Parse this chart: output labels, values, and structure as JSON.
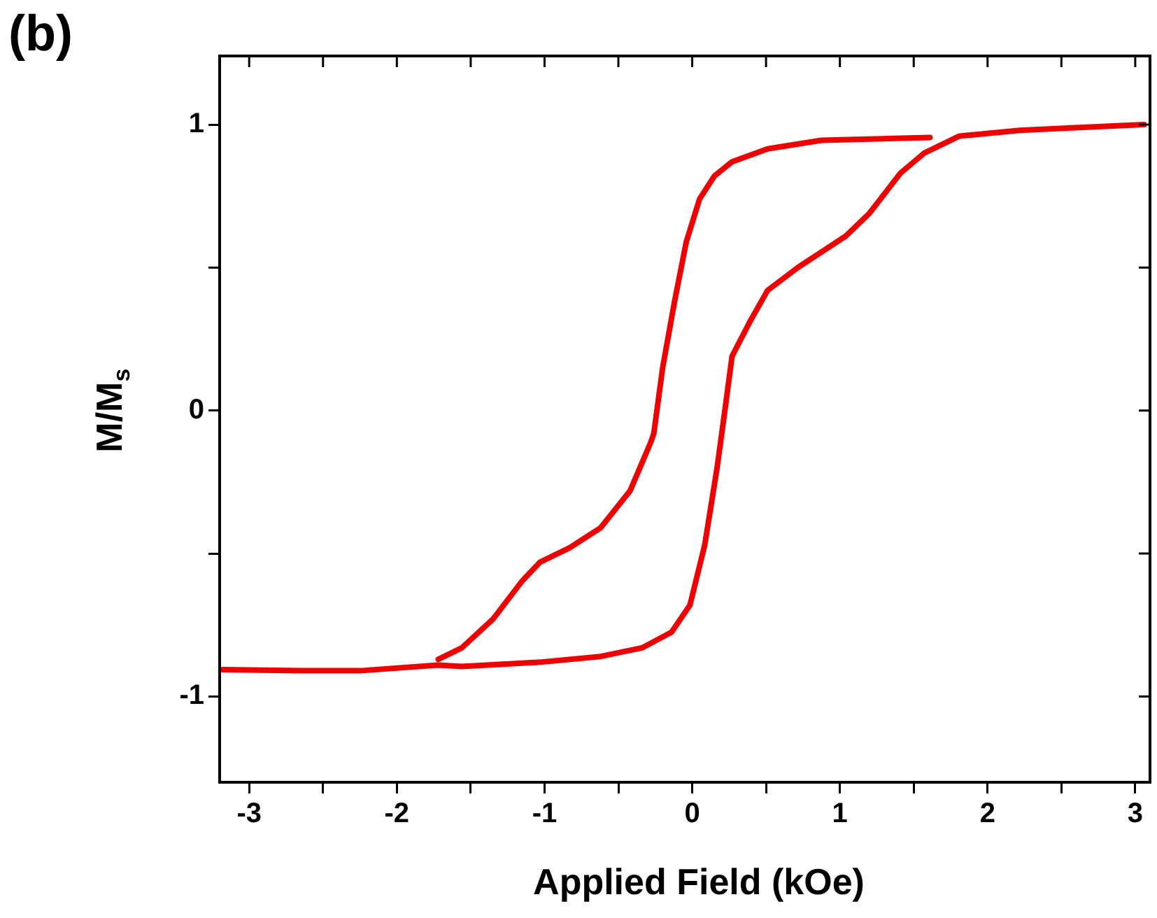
{
  "chart_data": {
    "type": "line",
    "title": "(b)",
    "xlabel": "Applied Field (kOe)",
    "ylabel": "M/M$_{s}$",
    "xlim": [
      -3.2,
      3.1
    ],
    "ylim": [
      -1.3,
      1.24
    ],
    "xticks": [
      -3,
      {
        "value": -2.5,
        "label": null
      },
      -2,
      {
        "value": -1.5,
        "label": null
      },
      -1,
      {
        "value": -0.5,
        "label": null
      },
      0,
      {
        "value": 0.5,
        "label": null
      },
      1,
      {
        "value": 1.5,
        "label": null
      },
      2,
      {
        "value": 2.5,
        "label": null
      },
      3
    ],
    "yticks": [
      -1,
      {
        "value": -0.5,
        "label": null
      },
      0,
      {
        "value": 0.5,
        "label": null
      },
      1
    ],
    "series": [
      {
        "color": "#ee0000",
        "x": [
          -3.18,
          -2.65,
          -2.25,
          -1.72,
          -1.56,
          -1.03,
          -0.62,
          -0.34,
          -0.14,
          -0.015,
          0.085,
          0.17,
          0.225,
          0.27,
          0.39,
          0.51,
          0.715,
          1.04,
          1.2,
          1.41,
          1.57,
          1.81,
          2.22,
          2.62,
          3.06
        ],
        "values": [
          -0.906,
          -0.91,
          -0.91,
          -0.89,
          -0.895,
          -0.88,
          -0.86,
          -0.83,
          -0.775,
          -0.68,
          -0.47,
          -0.195,
          0.015,
          0.19,
          0.31,
          0.42,
          0.5,
          0.61,
          0.69,
          0.83,
          0.9,
          0.96,
          0.98,
          0.99,
          1.0
        ]
      },
      {
        "color": "#ee0000",
        "x": [
          -1.72,
          -1.56,
          -1.35,
          -1.15,
          -1.03,
          -0.83,
          -0.62,
          -0.42,
          -0.28,
          -0.26,
          -0.2,
          -0.12,
          -0.04,
          0.05,
          0.15,
          0.27,
          0.51,
          0.875,
          1.61
        ],
        "values": [
          -0.87,
          -0.83,
          -0.73,
          -0.595,
          -0.53,
          -0.48,
          -0.41,
          -0.28,
          -0.11,
          -0.08,
          0.15,
          0.38,
          0.59,
          0.74,
          0.82,
          0.87,
          0.915,
          0.945,
          0.955
        ]
      }
    ]
  }
}
